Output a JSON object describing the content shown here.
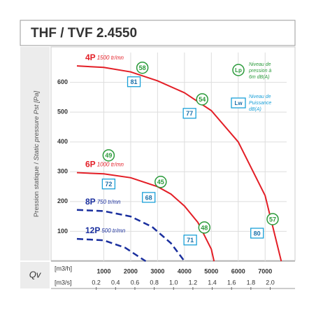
{
  "title": "THF / TVF 2.4550",
  "chart_data": {
    "type": "line",
    "y_label_fr": "Pression statique /",
    "y_label_en": "Static pressure Pst [Pa]",
    "x_label": "Qv",
    "x_unit": "[m3/h]",
    "x2_unit": "[m3/s]",
    "xlim": [
      0,
      7800
    ],
    "ylim": [
      0,
      700
    ],
    "x2lim": [
      0,
      2.17
    ],
    "xticks": [
      1000,
      2000,
      3000,
      4000,
      5000,
      6000,
      7000
    ],
    "x2ticks": [
      0.2,
      0.4,
      0.6,
      0.8,
      {
        "value": 1,
        "label": "1.0"
      },
      1.2,
      1.4,
      1.6,
      1.8,
      {
        "value": 2,
        "label": "2.0"
      }
    ],
    "yticks": [
      100,
      200,
      300,
      400,
      500,
      600
    ],
    "grid": true,
    "series": [
      {
        "name": "4P",
        "speed": "1500 tr/mn",
        "color": "#e31e26",
        "dashed": false,
        "x": [
          0,
          1000,
          2000,
          3000,
          4000,
          5000,
          6000,
          7000,
          7600
        ],
        "values": [
          655,
          650,
          635,
          605,
          565,
          505,
          400,
          220,
          0
        ]
      },
      {
        "name": "6P",
        "speed": "1000 tr/mn",
        "color": "#e31e26",
        "dashed": false,
        "x": [
          0,
          1000,
          2000,
          3000,
          3500,
          4000,
          4500,
          5000,
          5100
        ],
        "values": [
          297,
          293,
          280,
          250,
          225,
          185,
          130,
          40,
          0
        ]
      },
      {
        "name": "8P",
        "speed": "750 tr/mn",
        "color": "#1a2f9e",
        "dashed": true,
        "x": [
          0,
          1000,
          2000,
          2800,
          3500,
          4000
        ],
        "values": [
          172,
          168,
          150,
          115,
          60,
          0
        ]
      },
      {
        "name": "12P",
        "speed": "500 tr/mn",
        "color": "#1a2f9e",
        "dashed": true,
        "x": [
          0,
          1000,
          1800,
          2300,
          2560
        ],
        "values": [
          75,
          70,
          45,
          15,
          0
        ]
      }
    ],
    "lp_labels": [
      {
        "text": "58",
        "x": 2435,
        "y": 649
      },
      {
        "text": "54",
        "x": 4660,
        "y": 543
      },
      {
        "text": "49",
        "x": 1180,
        "y": 355
      },
      {
        "text": "45",
        "x": 3115,
        "y": 266
      },
      {
        "text": "48",
        "x": 4740,
        "y": 113
      },
      {
        "text": "57",
        "x": 7280,
        "y": 141
      }
    ],
    "lw_labels": [
      {
        "text": "81",
        "x": 2120,
        "y": 602
      },
      {
        "text": "77",
        "x": 4190,
        "y": 496
      },
      {
        "text": "72",
        "x": 1180,
        "y": 259
      },
      {
        "text": "68",
        "x": 2670,
        "y": 214
      },
      {
        "text": "71",
        "x": 4215,
        "y": 71
      },
      {
        "text": "80",
        "x": 6700,
        "y": 94
      }
    ],
    "legend": {
      "lp": {
        "symbol": "Lp",
        "text": [
          "Niveau de",
          "pression à",
          "6m dB(A)"
        ]
      },
      "lw": {
        "symbol": "Lw",
        "text": [
          "Niveau de",
          "Puissance",
          "dB(A)"
        ]
      }
    }
  }
}
